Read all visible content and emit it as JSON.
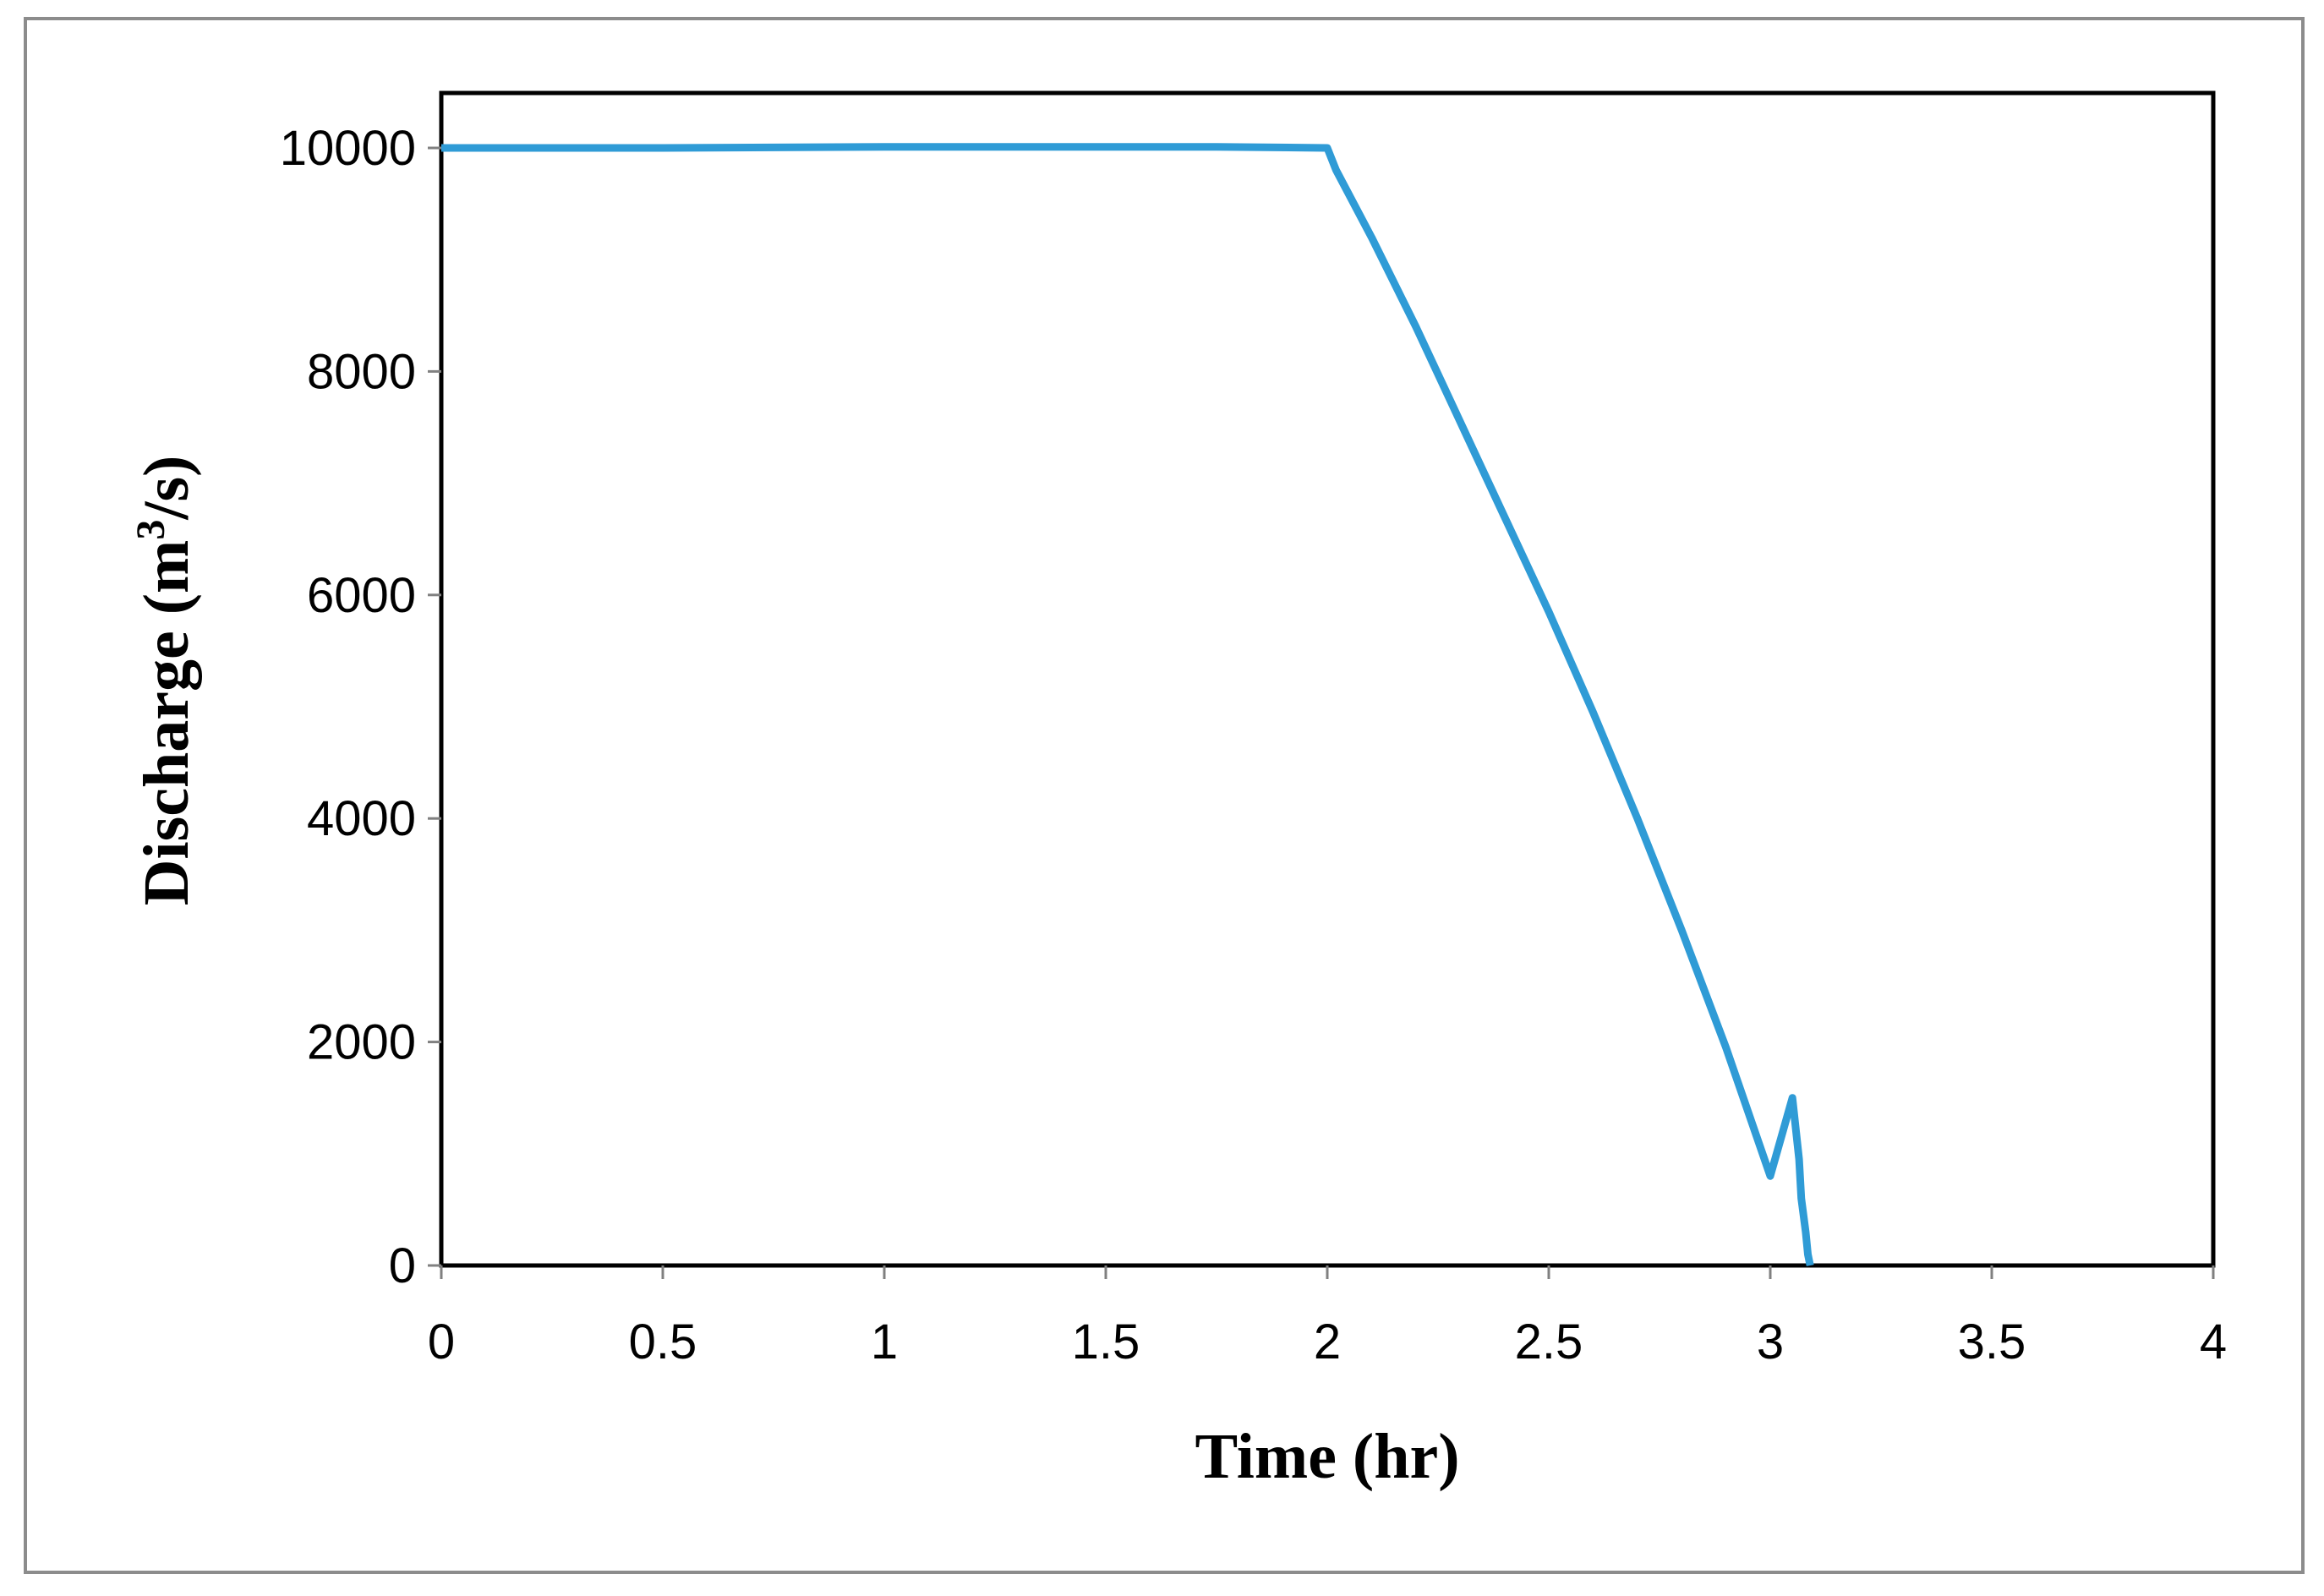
{
  "chart_data": {
    "type": "line",
    "title": "",
    "xlabel": "Time (hr)",
    "ylabel_parts": {
      "before": "Discharge (m",
      "superscript": "3",
      "after": "/s)"
    },
    "xlim": [
      0,
      4
    ],
    "ylim": [
      0,
      10000
    ],
    "x_ticks": [
      "0",
      "0.5",
      "1",
      "1.5",
      "2",
      "2.5",
      "3",
      "3.5",
      "4"
    ],
    "y_ticks": [
      "0",
      "2000",
      "4000",
      "6000",
      "8000",
      "10000"
    ],
    "grid": false,
    "legend": "none",
    "series": [
      {
        "color": "#2F9BD6",
        "x": [
          0,
          0.5,
          1.0,
          1.5,
          1.75,
          2.0,
          2.02,
          2.1,
          2.2,
          2.3,
          2.4,
          2.5,
          2.6,
          2.7,
          2.8,
          2.9,
          3.0,
          3.05,
          3.065,
          3.07,
          3.08,
          3.085,
          3.09
        ],
        "y": [
          10000,
          10000,
          10010,
          10010,
          10010,
          10000,
          9800,
          9200,
          8400,
          7550,
          6700,
          5850,
          4950,
          4000,
          3000,
          1950,
          800,
          1500,
          950,
          600,
          300,
          100,
          0
        ]
      }
    ],
    "colors": {
      "line": "#2F9BD6",
      "frame": "#000000",
      "outer_border": "#8C8C8C",
      "axis_ticks": "#808080"
    }
  }
}
